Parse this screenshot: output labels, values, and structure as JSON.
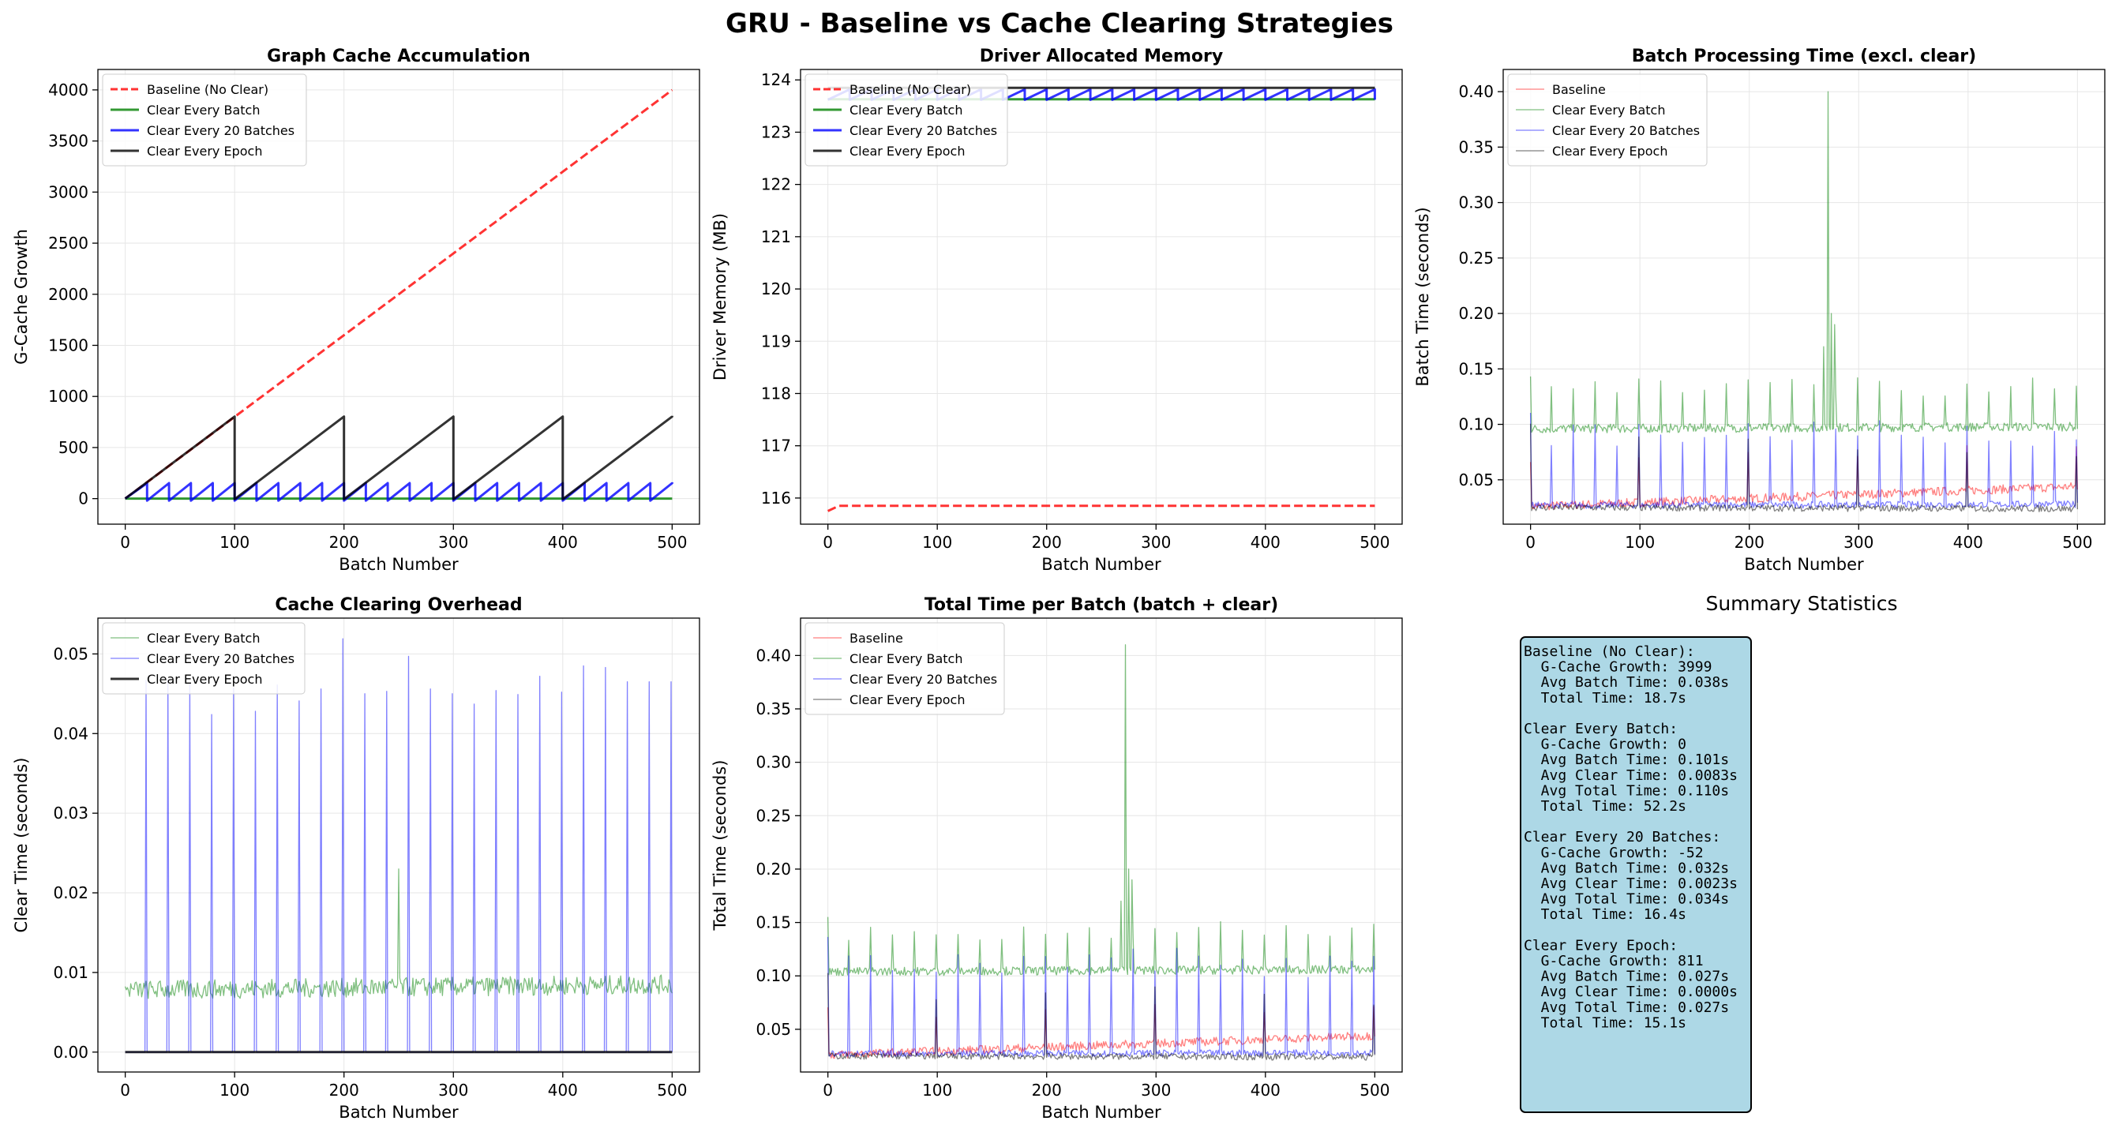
{
  "figure": {
    "title": "GRU - Baseline vs Cache Clearing Strategies"
  },
  "colors": {
    "baseline": "#ff0000",
    "every_batch": "#008000",
    "every_20": "#0000ff",
    "every_epoch": "#000000",
    "summary_bg": "#add8e6"
  },
  "chart_data": [
    {
      "type": "line",
      "title": "Graph Cache Accumulation",
      "xlabel": "Batch Number",
      "ylabel": "G-Cache Growth",
      "xlim": [
        -25,
        525
      ],
      "ylim": [
        -250,
        4200
      ],
      "xticks": [
        0,
        100,
        200,
        300,
        400,
        500
      ],
      "yticks": [
        0,
        500,
        1000,
        1500,
        2000,
        2500,
        3000,
        3500,
        4000
      ],
      "grid": true,
      "legend": "upper-left",
      "series": [
        {
          "name": "Baseline (No Clear)",
          "color": "#ff0000",
          "dash": true,
          "x": [
            0,
            500
          ],
          "y": [
            0,
            3999
          ]
        },
        {
          "name": "Clear Every Batch",
          "color": "#008000",
          "x": [
            0,
            500
          ],
          "y": [
            0,
            0
          ]
        },
        {
          "name": "Clear Every 20 Batches",
          "color": "#0000ff",
          "sawtooth": {
            "period": 20,
            "peak": 160,
            "reset": -20,
            "offset": 0
          }
        },
        {
          "name": "Clear Every Epoch",
          "color": "#000000",
          "sawtooth": {
            "period": 100,
            "peak": 811,
            "reset": -5,
            "offset": 0
          }
        }
      ]
    },
    {
      "type": "line",
      "title": "Driver Allocated Memory",
      "xlabel": "Batch Number",
      "ylabel": "Driver Memory (MB)",
      "xlim": [
        -25,
        525
      ],
      "ylim": [
        115.5,
        124.2
      ],
      "xticks": [
        0,
        100,
        200,
        300,
        400,
        500
      ],
      "yticks": [
        116,
        117,
        118,
        119,
        120,
        121,
        122,
        123,
        124
      ],
      "grid": true,
      "legend": "upper-left",
      "series": [
        {
          "name": "Baseline (No Clear)",
          "color": "#ff0000",
          "dash": true,
          "x": [
            0,
            10,
            500
          ],
          "y": [
            115.75,
            115.85,
            115.85
          ]
        },
        {
          "name": "Clear Every Batch",
          "color": "#008000",
          "x": [
            0,
            500
          ],
          "y": [
            123.63,
            123.63
          ]
        },
        {
          "name": "Clear Every 20 Batches",
          "color": "#0000ff",
          "sawtooth": {
            "period": 20,
            "low": 123.62,
            "high": 123.82
          }
        },
        {
          "name": "Clear Every Epoch",
          "color": "#000000",
          "x": [
            0,
            500
          ],
          "y": [
            123.85,
            123.85
          ]
        }
      ]
    },
    {
      "type": "line",
      "title": "Batch Processing Time (excl. clear)",
      "xlabel": "Batch Number",
      "ylabel": "Batch Time (seconds)",
      "xlim": [
        -25,
        525
      ],
      "ylim": [
        0.01,
        0.42
      ],
      "xticks": [
        0,
        100,
        200,
        300,
        400,
        500
      ],
      "yticks": [
        0.05,
        0.1,
        0.15,
        0.2,
        0.25,
        0.3,
        0.35,
        0.4
      ],
      "grid": true,
      "legend": "upper-left",
      "series": [
        {
          "name": "Baseline",
          "color": "#ff0000",
          "noise": {
            "start": 0.026,
            "end": 0.044,
            "amp": 0.004,
            "spike_every": 100,
            "spike": 0.04
          }
        },
        {
          "name": "Clear Every Batch",
          "color": "#008000",
          "noise": {
            "start": 0.096,
            "end": 0.098,
            "amp": 0.004,
            "spike_every": 20,
            "spike": 0.045,
            "big": [
              [
                272,
                0.4
              ],
              [
                268,
                0.17
              ],
              [
                278,
                0.19
              ],
              [
                275,
                0.2
              ]
            ]
          }
        },
        {
          "name": "Clear Every 20 Batches",
          "color": "#0000ff",
          "noise": {
            "start": 0.027,
            "end": 0.028,
            "amp": 0.003,
            "spike_every": 20,
            "spike": 0.075
          }
        },
        {
          "name": "Clear Every Epoch",
          "color": "#000000",
          "noise": {
            "start": 0.025,
            "end": 0.024,
            "amp": 0.003,
            "spike_every": 100,
            "spike": 0.07
          }
        }
      ]
    },
    {
      "type": "line",
      "title": "Cache Clearing Overhead",
      "xlabel": "Batch Number",
      "ylabel": "Clear Time (seconds)",
      "xlim": [
        -25,
        525
      ],
      "ylim": [
        -0.0025,
        0.0545
      ],
      "xticks": [
        0,
        100,
        200,
        300,
        400,
        500
      ],
      "yticks": [
        0.0,
        0.01,
        0.02,
        0.03,
        0.04,
        0.05
      ],
      "grid": true,
      "legend": "upper-left",
      "series": [
        {
          "name": "Clear Every Batch",
          "color": "#008000",
          "noise": {
            "start": 0.0078,
            "end": 0.0085,
            "amp": 0.0012,
            "big": [
              [
                250,
                0.023
              ]
            ]
          }
        },
        {
          "name": "Clear Every 20 Batches",
          "color": "#0000ff",
          "spikes": {
            "period": 20,
            "heights": [
              0.0467,
              0.0467,
              0.0462,
              0.0424,
              0.0457,
              0.0428,
              0.0461,
              0.0441,
              0.0456,
              0.0519,
              0.045,
              0.0453,
              0.0497,
              0.0456,
              0.045,
              0.0437,
              0.0454,
              0.0449,
              0.0472,
              0.0452,
              0.0485,
              0.0483,
              0.0465,
              0.0465,
              0.0465
            ]
          }
        },
        {
          "name": "Clear Every Epoch",
          "color": "#000000",
          "x": [
            0,
            500
          ],
          "y": [
            0,
            0
          ]
        }
      ]
    },
    {
      "type": "line",
      "title": "Total Time per Batch (batch + clear)",
      "xlabel": "Batch Number",
      "ylabel": "Total Time (seconds)",
      "xlim": [
        -25,
        525
      ],
      "ylim": [
        0.01,
        0.435
      ],
      "xticks": [
        0,
        100,
        200,
        300,
        400,
        500
      ],
      "yticks": [
        0.05,
        0.1,
        0.15,
        0.2,
        0.25,
        0.3,
        0.35,
        0.4
      ],
      "grid": true,
      "legend": "upper-left",
      "series": [
        {
          "name": "Baseline",
          "color": "#ff0000",
          "noise": {
            "start": 0.026,
            "end": 0.044,
            "amp": 0.004,
            "spike_every": 100,
            "spike": 0.04
          }
        },
        {
          "name": "Clear Every Batch",
          "color": "#008000",
          "noise": {
            "start": 0.104,
            "end": 0.106,
            "amp": 0.004,
            "spike_every": 20,
            "spike": 0.045,
            "big": [
              [
                272,
                0.41
              ],
              [
                268,
                0.17
              ],
              [
                278,
                0.19
              ],
              [
                275,
                0.2
              ]
            ]
          }
        },
        {
          "name": "Clear Every 20 Batches",
          "color": "#0000ff",
          "noise": {
            "start": 0.027,
            "end": 0.028,
            "amp": 0.003,
            "spike_every": 20,
            "spike": 0.1
          }
        },
        {
          "name": "Clear Every Epoch",
          "color": "#000000",
          "noise": {
            "start": 0.025,
            "end": 0.024,
            "amp": 0.003,
            "spike_every": 100,
            "spike": 0.07
          }
        }
      ]
    }
  ],
  "summary": {
    "title": "Summary Statistics",
    "lines": [
      "Baseline (No Clear):",
      "  G-Cache Growth: 3999",
      "  Avg Batch Time: 0.038s",
      "  Total Time: 18.7s",
      "",
      "Clear Every Batch:",
      "  G-Cache Growth: 0",
      "  Avg Batch Time: 0.101s",
      "  Avg Clear Time: 0.0083s",
      "  Avg Total Time: 0.110s",
      "  Total Time: 52.2s",
      "",
      "Clear Every 20 Batches:",
      "  G-Cache Growth: -52",
      "  Avg Batch Time: 0.032s",
      "  Avg Clear Time: 0.0023s",
      "  Avg Total Time: 0.034s",
      "  Total Time: 16.4s",
      "",
      "Clear Every Epoch:",
      "  G-Cache Growth: 811",
      "  Avg Batch Time: 0.027s",
      "  Avg Clear Time: 0.0000s",
      "  Avg Total Time: 0.027s",
      "  Total Time: 15.1s"
    ]
  }
}
